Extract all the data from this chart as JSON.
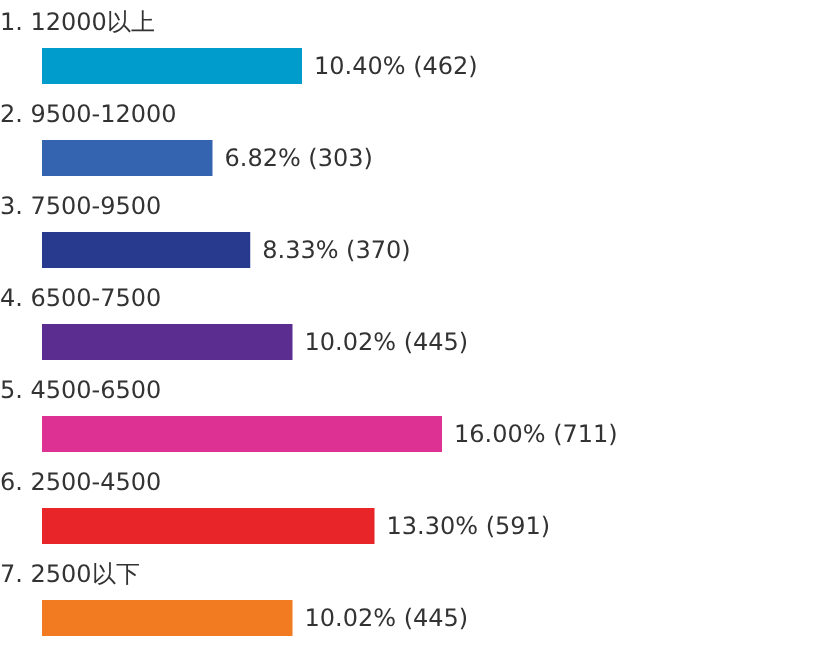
{
  "chart_data": {
    "type": "bar",
    "orientation": "horizontal",
    "categories": [
      "1. 12000以上",
      "2. 9500-12000",
      "3. 7500-9500",
      "4. 6500-7500",
      "5. 4500-6500",
      "6. 2500-4500",
      "7. 2500以下"
    ],
    "values": [
      10.4,
      6.82,
      8.33,
      10.02,
      16.0,
      13.3,
      10.02
    ],
    "colors": [
      "#009ccc",
      "#3464b0",
      "#273a8e",
      "#5b2d90",
      "#dd3293",
      "#e8262a",
      "#f27b21"
    ],
    "value_labels": [
      "10.40% (462)",
      "6.82% (303)",
      "8.33% (370)",
      "10.02% (445)",
      "16.00% (711)",
      "13.30% (591)",
      "10.02% (445)"
    ]
  }
}
